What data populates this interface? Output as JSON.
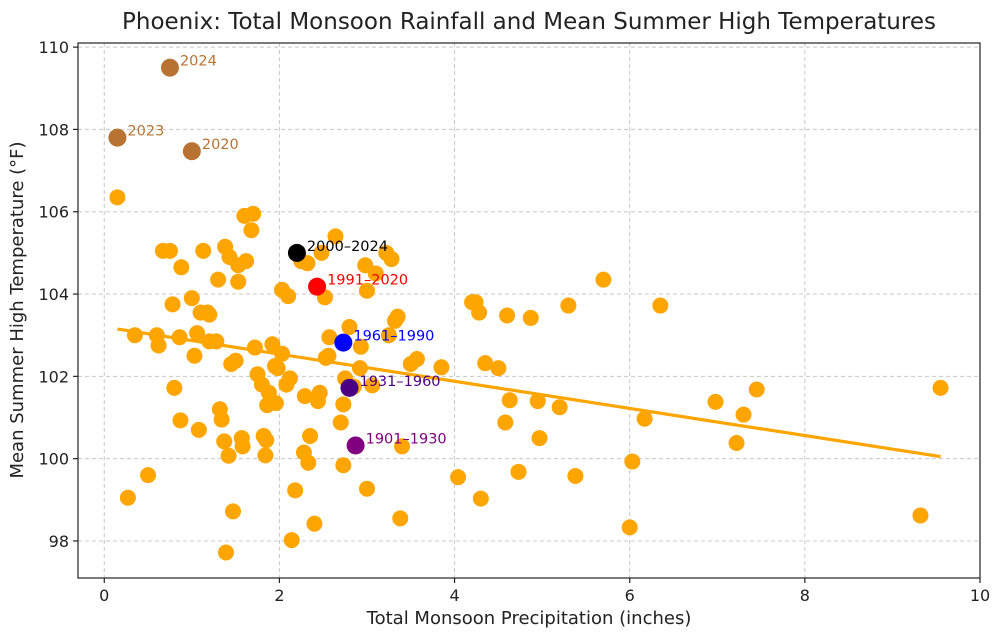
{
  "chart_data": {
    "type": "scatter",
    "title": "Phoenix: Total Monsoon Rainfall and Mean Summer High Temperatures",
    "xlabel": "Total Monsoon Precipitation (inches)",
    "ylabel": "Mean Summer High Temperature (°F)",
    "xlim": [
      -0.3,
      10.0
    ],
    "ylim": [
      97.1,
      110.1
    ],
    "xticks": [
      0,
      2,
      4,
      6,
      8,
      10
    ],
    "yticks": [
      98,
      100,
      102,
      104,
      106,
      108,
      110
    ],
    "grid": true,
    "colors": {
      "points": "#FFA500",
      "trend": "#FFA500"
    },
    "trend_line": {
      "x": [
        0.15,
        9.55
      ],
      "y": [
        103.15,
        100.05
      ]
    },
    "points": [
      [
        0.15,
        106.35
      ],
      [
        0.27,
        99.05
      ],
      [
        0.35,
        103.0
      ],
      [
        0.5,
        99.6
      ],
      [
        0.6,
        103.0
      ],
      [
        0.62,
        102.75
      ],
      [
        0.67,
        105.05
      ],
      [
        0.75,
        105.05
      ],
      [
        0.78,
        103.75
      ],
      [
        0.8,
        101.72
      ],
      [
        0.86,
        102.95
      ],
      [
        0.87,
        100.93
      ],
      [
        0.88,
        104.65
      ],
      [
        1.0,
        103.9
      ],
      [
        1.03,
        102.5
      ],
      [
        1.06,
        103.05
      ],
      [
        1.08,
        100.7
      ],
      [
        1.1,
        103.55
      ],
      [
        1.13,
        105.05
      ],
      [
        1.18,
        103.55
      ],
      [
        1.2,
        103.5
      ],
      [
        1.2,
        102.85
      ],
      [
        1.28,
        102.85
      ],
      [
        1.3,
        104.35
      ],
      [
        1.32,
        101.2
      ],
      [
        1.34,
        100.95
      ],
      [
        1.37,
        100.42
      ],
      [
        1.38,
        105.15
      ],
      [
        1.39,
        97.72
      ],
      [
        1.42,
        100.07
      ],
      [
        1.43,
        104.9
      ],
      [
        1.45,
        102.3
      ],
      [
        1.47,
        98.72
      ],
      [
        1.5,
        102.38
      ],
      [
        1.53,
        104.3
      ],
      [
        1.53,
        104.7
      ],
      [
        1.57,
        100.5
      ],
      [
        1.58,
        100.3
      ],
      [
        1.6,
        105.9
      ],
      [
        1.62,
        104.8
      ],
      [
        1.68,
        105.55
      ],
      [
        1.7,
        105.95
      ],
      [
        1.72,
        102.7
      ],
      [
        1.75,
        102.05
      ],
      [
        1.8,
        101.8
      ],
      [
        1.82,
        100.55
      ],
      [
        1.84,
        100.08
      ],
      [
        1.85,
        100.45
      ],
      [
        1.86,
        101.3
      ],
      [
        1.88,
        101.6
      ],
      [
        1.92,
        102.78
      ],
      [
        1.95,
        102.25
      ],
      [
        1.96,
        101.35
      ],
      [
        1.98,
        102.2
      ],
      [
        2.03,
        104.1
      ],
      [
        2.03,
        102.55
      ],
      [
        2.08,
        101.8
      ],
      [
        2.1,
        103.95
      ],
      [
        2.12,
        101.95
      ],
      [
        2.14,
        98.02
      ],
      [
        2.18,
        99.23
      ],
      [
        2.25,
        104.8
      ],
      [
        2.28,
        100.15
      ],
      [
        2.29,
        101.52
      ],
      [
        2.32,
        104.75
      ],
      [
        2.33,
        99.9
      ],
      [
        2.35,
        100.55
      ],
      [
        2.4,
        98.42
      ],
      [
        2.44,
        101.4
      ],
      [
        2.46,
        101.6
      ],
      [
        2.48,
        105.0
      ],
      [
        2.52,
        103.92
      ],
      [
        2.53,
        102.45
      ],
      [
        2.56,
        102.5
      ],
      [
        2.57,
        102.95
      ],
      [
        2.64,
        105.4
      ],
      [
        2.7,
        100.88
      ],
      [
        2.73,
        101.32
      ],
      [
        2.73,
        99.84
      ],
      [
        2.75,
        101.95
      ],
      [
        2.8,
        103.2
      ],
      [
        2.85,
        101.75
      ],
      [
        2.92,
        102.2
      ],
      [
        2.93,
        102.72
      ],
      [
        2.98,
        104.7
      ],
      [
        3.0,
        104.08
      ],
      [
        3.0,
        99.27
      ],
      [
        3.06,
        101.78
      ],
      [
        3.1,
        104.5
      ],
      [
        3.22,
        105.0
      ],
      [
        3.25,
        103.0
      ],
      [
        3.28,
        104.85
      ],
      [
        3.32,
        103.35
      ],
      [
        3.35,
        103.45
      ],
      [
        3.38,
        98.55
      ],
      [
        3.4,
        100.3
      ],
      [
        3.5,
        102.3
      ],
      [
        3.57,
        102.42
      ],
      [
        3.85,
        102.22
      ],
      [
        4.04,
        99.55
      ],
      [
        4.2,
        103.8
      ],
      [
        4.24,
        103.8
      ],
      [
        4.28,
        103.55
      ],
      [
        4.3,
        99.03
      ],
      [
        4.35,
        102.32
      ],
      [
        4.5,
        102.2
      ],
      [
        4.58,
        100.88
      ],
      [
        4.6,
        103.48
      ],
      [
        4.63,
        101.42
      ],
      [
        4.73,
        99.68
      ],
      [
        4.87,
        103.42
      ],
      [
        4.95,
        101.4
      ],
      [
        4.97,
        100.5
      ],
      [
        5.2,
        101.25
      ],
      [
        5.3,
        103.72
      ],
      [
        5.38,
        99.58
      ],
      [
        5.7,
        104.35
      ],
      [
        6.0,
        98.33
      ],
      [
        6.03,
        99.93
      ],
      [
        6.17,
        100.97
      ],
      [
        6.35,
        103.72
      ],
      [
        6.98,
        101.38
      ],
      [
        7.22,
        100.38
      ],
      [
        7.3,
        101.07
      ],
      [
        7.45,
        101.68
      ],
      [
        9.32,
        98.62
      ],
      [
        9.55,
        101.72
      ]
    ],
    "highlights": [
      {
        "label": "2024",
        "x": 0.75,
        "y": 109.5,
        "color": "#B87333"
      },
      {
        "label": "2023",
        "x": 0.15,
        "y": 107.8,
        "color": "#B87333"
      },
      {
        "label": "2020",
        "x": 1.0,
        "y": 107.47,
        "color": "#B87333"
      },
      {
        "label": "2000–2024",
        "x": 2.2,
        "y": 105.0,
        "color": "#000000"
      },
      {
        "label": "1991–2020",
        "x": 2.43,
        "y": 104.18,
        "color": "#FF0000"
      },
      {
        "label": "1961–1990",
        "x": 2.73,
        "y": 102.82,
        "color": "#0000FF"
      },
      {
        "label": "1931–1960",
        "x": 2.8,
        "y": 101.72,
        "color": "#4B0082"
      },
      {
        "label": "1901–1930",
        "x": 2.87,
        "y": 100.32,
        "color": "#800080"
      }
    ]
  }
}
